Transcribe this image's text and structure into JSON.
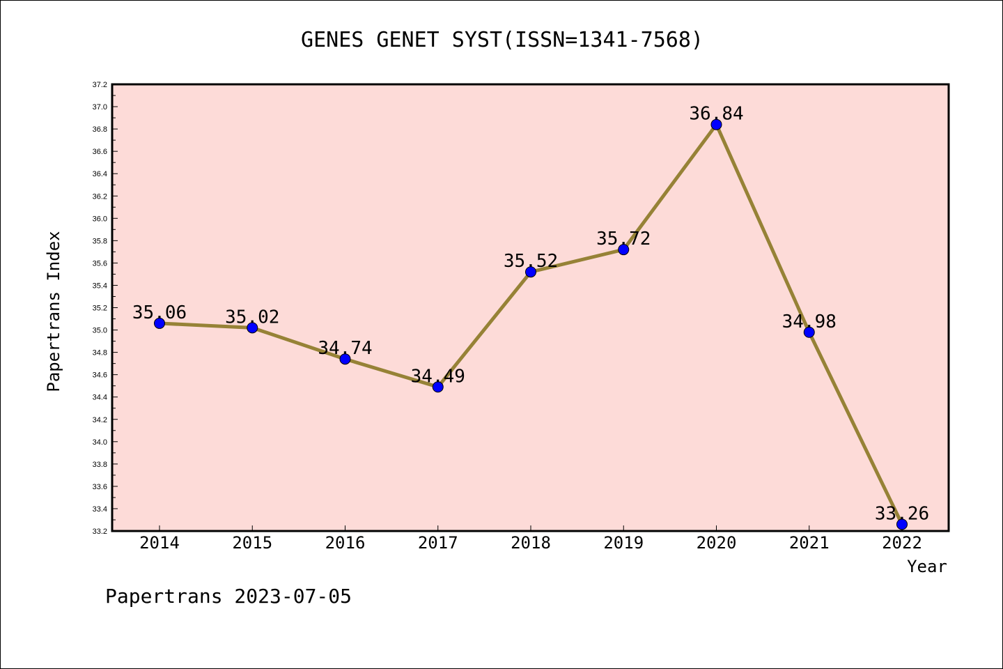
{
  "chart_data": {
    "type": "line",
    "title": "GENES GENET SYST(ISSN=1341-7568)",
    "xlabel": "Year",
    "ylabel": "Papertrans Index",
    "categories": [
      "2014",
      "2015",
      "2016",
      "2017",
      "2018",
      "2019",
      "2020",
      "2021",
      "2022"
    ],
    "series": [
      {
        "values": [
          35.06,
          35.02,
          34.74,
          34.49,
          35.52,
          35.72,
          36.84,
          34.98,
          33.26
        ],
        "data_labels": [
          "35.06",
          "35.02",
          "34.74",
          "34.49",
          "35.52",
          "35.72",
          "36.84",
          "34.98",
          "33.26"
        ],
        "line_color": "#968236",
        "marker_color": "#0000ff"
      }
    ],
    "ylim": [
      33.2,
      37.2
    ],
    "yticks": [
      "33.2",
      "33.4",
      "33.6",
      "33.8",
      "34.0",
      "34.2",
      "34.4",
      "34.6",
      "34.8",
      "35.0",
      "35.2",
      "35.4",
      "35.6",
      "35.8",
      "36.0",
      "36.2",
      "36.4",
      "36.6",
      "36.8",
      "37.0",
      "37.2"
    ],
    "grid": false,
    "plot_background": "#fddbd8"
  },
  "footer": "Papertrans 2023-07-05"
}
